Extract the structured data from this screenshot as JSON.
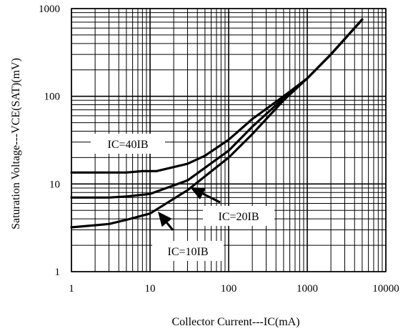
{
  "chart_data": {
    "type": "line",
    "title": "",
    "xlabel": "Collector Current---IC(mA)",
    "ylabel": "Saturation Voltage---VCE(SAT)(mV)",
    "x_scale": "log",
    "y_scale": "log",
    "xlim": [
      1,
      10000
    ],
    "ylim": [
      1,
      1000
    ],
    "grid": true,
    "x_ticks": [
      "1",
      "10",
      "100",
      "1000",
      "10000"
    ],
    "y_ticks": [
      "1",
      "10",
      "100",
      "1000"
    ],
    "series": [
      {
        "name": "IC=40IB",
        "x": [
          1,
          5,
          8,
          12,
          30,
          50,
          100,
          200,
          500,
          1000,
          2000,
          5000
        ],
        "y": [
          13.5,
          13.5,
          14,
          14,
          17,
          21,
          32,
          55,
          100,
          160,
          300,
          750
        ]
      },
      {
        "name": "IC=20IB",
        "x": [
          1,
          3,
          5,
          10,
          30,
          100,
          200,
          500,
          1000,
          2000,
          5000
        ],
        "y": [
          7,
          7,
          7.2,
          7.7,
          11,
          24,
          45,
          95,
          160,
          300,
          750
        ]
      },
      {
        "name": "IC=10IB",
        "x": [
          1,
          3,
          5,
          10,
          30,
          100,
          200,
          500,
          1000,
          2000,
          5000
        ],
        "y": [
          3.2,
          3.5,
          3.9,
          4.6,
          8.5,
          20,
          37,
          90,
          160,
          300,
          750
        ]
      }
    ],
    "annotations": [
      {
        "text": "IC=40IB",
        "points_to": "IC=40IB"
      },
      {
        "text": "IC=20IB",
        "points_to": "IC=20IB"
      },
      {
        "text": "IC=10IB",
        "points_to": "IC=10IB"
      }
    ]
  }
}
